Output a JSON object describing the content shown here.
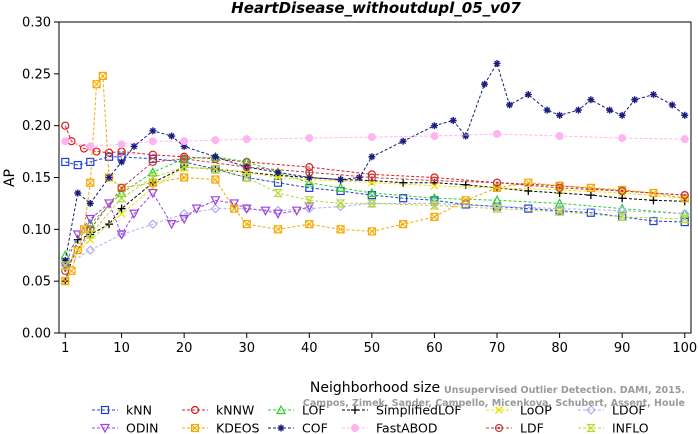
{
  "chart_data": {
    "type": "line",
    "title": "HeartDisease_withoutdupl_05_v07",
    "xlabel": "Neighborhood size",
    "ylabel": "AP",
    "xlim": [
      0,
      101
    ],
    "ylim": [
      0,
      0.3
    ],
    "xticks": [
      1,
      10,
      20,
      30,
      40,
      50,
      60,
      70,
      80,
      90,
      100
    ],
    "yticks": [
      "0.00",
      "0.05",
      "0.10",
      "0.15",
      "0.20",
      "0.25",
      "0.30"
    ],
    "grid": false,
    "legend_position": "bottom",
    "watermark": [
      "Unsupervised Outlier Detection. DAMI, 2015.",
      "Campos, Zimek, Sander, Campello, Micenkova, Schubert, Assent, Houle"
    ],
    "series": [
      {
        "name": "kNN",
        "color": "#1f3fd6",
        "marker": "square",
        "x": [
          1,
          3,
          5,
          8,
          10,
          15,
          20,
          25,
          30,
          35,
          40,
          45,
          50,
          55,
          60,
          65,
          70,
          75,
          80,
          85,
          90,
          95,
          100
        ],
        "y": [
          0.165,
          0.162,
          0.165,
          0.17,
          0.17,
          0.168,
          0.165,
          0.158,
          0.15,
          0.145,
          0.14,
          0.137,
          0.133,
          0.13,
          0.128,
          0.124,
          0.122,
          0.12,
          0.118,
          0.116,
          0.112,
          0.108,
          0.107
        ]
      },
      {
        "name": "kNNW",
        "color": "#e01a1a",
        "marker": "circle",
        "x": [
          1,
          2,
          4,
          6,
          8,
          10,
          15,
          20,
          25,
          30,
          40,
          50,
          60,
          70,
          80,
          90,
          100
        ],
        "y": [
          0.2,
          0.185,
          0.178,
          0.175,
          0.174,
          0.175,
          0.172,
          0.17,
          0.168,
          0.165,
          0.16,
          0.153,
          0.15,
          0.145,
          0.142,
          0.137,
          0.133
        ]
      },
      {
        "name": "LOF",
        "color": "#2fcf2f",
        "marker": "triangle",
        "x": [
          1,
          5,
          10,
          15,
          20,
          25,
          30,
          35,
          40,
          45,
          50,
          60,
          70,
          80,
          90,
          100
        ],
        "y": [
          0.075,
          0.105,
          0.135,
          0.155,
          0.168,
          0.17,
          0.165,
          0.155,
          0.145,
          0.14,
          0.135,
          0.13,
          0.128,
          0.125,
          0.12,
          0.115
        ]
      },
      {
        "name": "SimplifiedLOF",
        "color": "#000000",
        "marker": "plus",
        "x": [
          1,
          3,
          5,
          8,
          10,
          15,
          20,
          25,
          30,
          35,
          40,
          45,
          50,
          55,
          60,
          65,
          70,
          75,
          80,
          85,
          90,
          95,
          100
        ],
        "y": [
          0.05,
          0.09,
          0.095,
          0.105,
          0.12,
          0.145,
          0.16,
          0.158,
          0.155,
          0.152,
          0.15,
          0.148,
          0.147,
          0.145,
          0.145,
          0.143,
          0.14,
          0.137,
          0.135,
          0.133,
          0.13,
          0.128,
          0.127
        ]
      },
      {
        "name": "LoOP",
        "color": "#e6e600",
        "marker": "x",
        "x": [
          1,
          5,
          10,
          15,
          20,
          25,
          30,
          35,
          40,
          50,
          60,
          70,
          80,
          90,
          100
        ],
        "y": [
          0.065,
          0.09,
          0.115,
          0.14,
          0.16,
          0.158,
          0.155,
          0.15,
          0.148,
          0.145,
          0.142,
          0.14,
          0.138,
          0.135,
          0.13
        ]
      },
      {
        "name": "LDOF",
        "color": "#b0b0ee",
        "marker": "diamond",
        "x": [
          1,
          5,
          10,
          15,
          20,
          25,
          30,
          35,
          40,
          45,
          50,
          60,
          70,
          80,
          90,
          100
        ],
        "y": [
          0.065,
          0.08,
          0.095,
          0.105,
          0.115,
          0.12,
          0.12,
          0.118,
          0.12,
          0.122,
          0.125,
          0.125,
          0.122,
          0.12,
          0.118,
          0.115
        ]
      },
      {
        "name": "ODIN",
        "color": "#a040e0",
        "marker": "triangle-down",
        "x": [
          1,
          3,
          5,
          8,
          10,
          12,
          15,
          18,
          20,
          22,
          25,
          28,
          30,
          33,
          35,
          38,
          40
        ],
        "y": [
          0.065,
          0.095,
          0.11,
          0.125,
          0.095,
          0.115,
          0.135,
          0.105,
          0.11,
          0.12,
          0.128,
          0.125,
          0.12,
          0.118,
          0.115,
          0.118,
          0.122
        ]
      },
      {
        "name": "KDEOS",
        "color": "#f5a800",
        "marker": "square-x",
        "x": [
          1,
          2,
          3,
          4,
          5,
          6,
          7,
          8,
          10,
          15,
          20,
          25,
          28,
          30,
          35,
          40,
          45,
          50,
          55,
          60,
          65,
          70,
          75,
          80,
          85,
          90,
          95,
          100
        ],
        "y": [
          0.05,
          0.06,
          0.08,
          0.1,
          0.145,
          0.24,
          0.248,
          0.15,
          0.14,
          0.145,
          0.15,
          0.148,
          0.12,
          0.105,
          0.1,
          0.105,
          0.1,
          0.098,
          0.105,
          0.112,
          0.128,
          0.14,
          0.145,
          0.142,
          0.14,
          0.138,
          0.135,
          0.13
        ]
      },
      {
        "name": "COF",
        "color": "#1a1a80",
        "marker": "star",
        "x": [
          1,
          3,
          5,
          8,
          10,
          12,
          15,
          18,
          20,
          25,
          30,
          35,
          40,
          45,
          48,
          50,
          55,
          60,
          63,
          65,
          68,
          70,
          72,
          75,
          78,
          80,
          83,
          85,
          88,
          90,
          92,
          95,
          98,
          100
        ],
        "y": [
          0.07,
          0.135,
          0.125,
          0.15,
          0.165,
          0.18,
          0.195,
          0.19,
          0.18,
          0.17,
          0.16,
          0.155,
          0.15,
          0.148,
          0.15,
          0.17,
          0.185,
          0.2,
          0.205,
          0.19,
          0.24,
          0.26,
          0.22,
          0.23,
          0.215,
          0.21,
          0.215,
          0.225,
          0.215,
          0.21,
          0.225,
          0.23,
          0.22,
          0.21
        ]
      },
      {
        "name": "FastABOD",
        "color": "#ffb3f0",
        "marker": "circle-filled",
        "x": [
          1,
          5,
          10,
          15,
          20,
          25,
          30,
          40,
          50,
          60,
          70,
          80,
          90,
          100
        ],
        "y": [
          0.185,
          0.18,
          0.182,
          0.185,
          0.185,
          0.186,
          0.187,
          0.188,
          0.189,
          0.19,
          0.192,
          0.19,
          0.188,
          0.187
        ]
      },
      {
        "name": "LDF",
        "color": "#c04040",
        "marker": "circle-dot",
        "x": [
          1,
          5,
          10,
          15,
          20,
          30,
          40,
          50,
          60,
          70,
          80,
          90,
          100
        ],
        "y": [
          0.06,
          0.1,
          0.14,
          0.165,
          0.168,
          0.16,
          0.155,
          0.15,
          0.147,
          0.145,
          0.14,
          0.137,
          0.133
        ]
      },
      {
        "name": "INFLO",
        "color": "#b8d838",
        "marker": "hourglass",
        "x": [
          1,
          5,
          10,
          15,
          20,
          25,
          30,
          35,
          40,
          45,
          50,
          60,
          70,
          80,
          90,
          100
        ],
        "y": [
          0.065,
          0.095,
          0.13,
          0.15,
          0.16,
          0.158,
          0.15,
          0.135,
          0.128,
          0.125,
          0.125,
          0.123,
          0.12,
          0.117,
          0.112,
          0.11
        ]
      }
    ]
  }
}
